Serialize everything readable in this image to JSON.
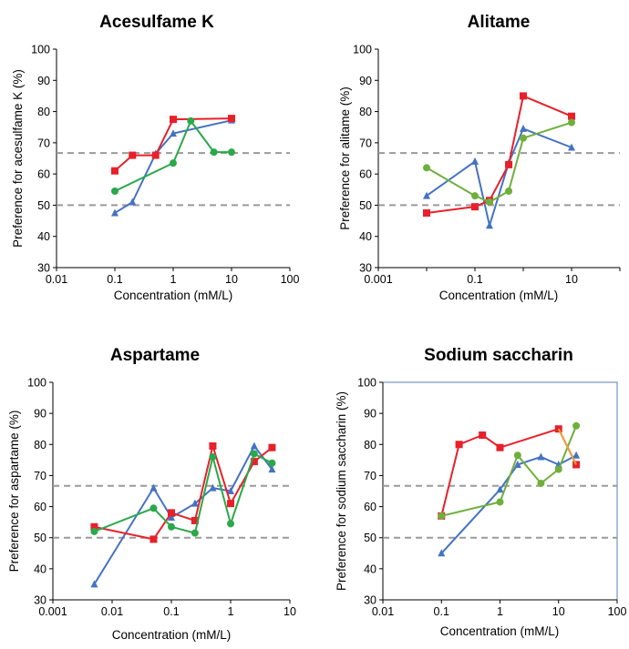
{
  "chart_data": [
    {
      "type": "line",
      "title": "Acesulfame K",
      "xlabel": "Concentration (mM/L)",
      "ylabel": "Preference for acesulfame K (%)",
      "xscale": "log",
      "xlim": [
        0.01,
        100
      ],
      "ylim": [
        30,
        100
      ],
      "xticks": [
        "0.01",
        "0.1",
        "1",
        "10",
        "100"
      ],
      "yticks": [
        "30",
        "40",
        "50",
        "60",
        "70",
        "80",
        "90",
        "100"
      ],
      "reference_lines": [
        50,
        66.7
      ],
      "grid": false,
      "legend": "none",
      "series": [
        {
          "color": "#4472C4",
          "marker": "triangle",
          "x": [
            0.1,
            0.2,
            0.5,
            1,
            10
          ],
          "y": [
            47.5,
            51,
            66.5,
            73,
            77.2
          ]
        },
        {
          "color": "#E8202A",
          "marker": "square",
          "x": [
            0.1,
            0.2,
            0.5,
            1,
            10
          ],
          "y": [
            61,
            66,
            66,
            77.5,
            77.8
          ]
        },
        {
          "color": "#2BA84A",
          "marker": "circle",
          "x": [
            0.1,
            1,
            2,
            5,
            10
          ],
          "y": [
            54.5,
            63.5,
            77,
            67,
            67
          ]
        }
      ]
    },
    {
      "type": "line",
      "title": "Alitame",
      "xlabel": "Concentration (mM/L)",
      "ylabel": "Preference for alitame (%)",
      "xscale": "log",
      "xlim": [
        0.001,
        100
      ],
      "ylim": [
        30,
        100
      ],
      "xticks": [
        "0.001",
        "0.1",
        "10"
      ],
      "yticks": [
        "30",
        "40",
        "50",
        "60",
        "70",
        "80",
        "90",
        "100"
      ],
      "reference_lines": [
        50,
        66.7
      ],
      "grid": false,
      "legend": "none",
      "series": [
        {
          "color": "#4472C4",
          "marker": "triangle",
          "x": [
            0.01,
            0.1,
            0.2,
            0.5,
            1,
            10
          ],
          "y": [
            53,
            64,
            43.5,
            63.5,
            74.5,
            68.5
          ]
        },
        {
          "color": "#E8202A",
          "marker": "square",
          "x": [
            0.01,
            0.1,
            0.2,
            0.5,
            1,
            10
          ],
          "y": [
            47.5,
            49.5,
            51.5,
            63,
            85,
            78.5
          ]
        },
        {
          "color": "#6FAF3C",
          "marker": "circle",
          "x": [
            0.01,
            0.1,
            0.2,
            0.5,
            1,
            10
          ],
          "y": [
            62,
            53,
            51,
            54.5,
            71.5,
            76.5
          ]
        }
      ]
    },
    {
      "type": "line",
      "title": "Aspartame",
      "xlabel": "Concentration (mM/L)",
      "ylabel": "Preference for aspartame (%)",
      "xscale": "log",
      "xlim": [
        0.001,
        10
      ],
      "ylim": [
        30,
        100
      ],
      "xticks": [
        "0.001",
        "0.01",
        "0.1",
        "1",
        "10"
      ],
      "yticks": [
        "30",
        "40",
        "50",
        "60",
        "70",
        "80",
        "90",
        "100"
      ],
      "reference_lines": [
        50,
        66.7
      ],
      "grid": false,
      "legend": "none",
      "series": [
        {
          "color": "#4472C4",
          "marker": "triangle",
          "x": [
            0.005,
            0.05,
            0.1,
            0.25,
            0.5,
            1,
            2.5,
            5
          ],
          "y": [
            35,
            66,
            56.5,
            61,
            66,
            65,
            79.5,
            72
          ]
        },
        {
          "color": "#E8202A",
          "marker": "square",
          "x": [
            0.005,
            0.05,
            0.1,
            0.25,
            0.5,
            1,
            2.5,
            5
          ],
          "y": [
            53.5,
            49.5,
            58,
            55.5,
            79.5,
            61,
            74.5,
            79
          ]
        },
        {
          "color": "#2BA84A",
          "marker": "circle",
          "x": [
            0.005,
            0.05,
            0.1,
            0.25,
            0.5,
            1,
            2.5,
            5
          ],
          "y": [
            52,
            59.5,
            53.5,
            51.5,
            76,
            54.5,
            77,
            74
          ]
        }
      ]
    },
    {
      "type": "line",
      "title": "Sodium saccharin",
      "xlabel": "Concentration (mM/L)",
      "ylabel": "Preference for sodium saccharin (%)",
      "xscale": "log",
      "xlim": [
        0.01,
        100
      ],
      "ylim": [
        30,
        100
      ],
      "xticks": [
        "0.01",
        "0.1",
        "1",
        "10",
        "100"
      ],
      "yticks": [
        "30",
        "40",
        "50",
        "60",
        "70",
        "80",
        "90",
        "100"
      ],
      "reference_lines": [
        50,
        66.7
      ],
      "grid": false,
      "legend": "none",
      "series": [
        {
          "color": "#4472C4",
          "marker": "triangle",
          "x": [
            0.1,
            1,
            2,
            5,
            10,
            20
          ],
          "y": [
            45,
            65.5,
            73.5,
            76,
            73.5,
            76.5
          ]
        },
        {
          "color": "#E8202A",
          "marker": "square",
          "x": [
            0.1,
            0.2,
            0.5,
            1,
            10,
            20
          ],
          "y": [
            57,
            80,
            83,
            79,
            85,
            73.5
          ]
        },
        {
          "color": "#6FAF3C",
          "marker": "circle",
          "x": [
            0.1,
            1,
            2,
            5,
            10,
            20
          ],
          "y": [
            57,
            61.5,
            76.5,
            67.5,
            72,
            86
          ]
        },
        {
          "color": "#E8A33C",
          "marker": "none",
          "x": [
            10,
            20
          ],
          "y": [
            85,
            73.5
          ]
        }
      ]
    }
  ]
}
